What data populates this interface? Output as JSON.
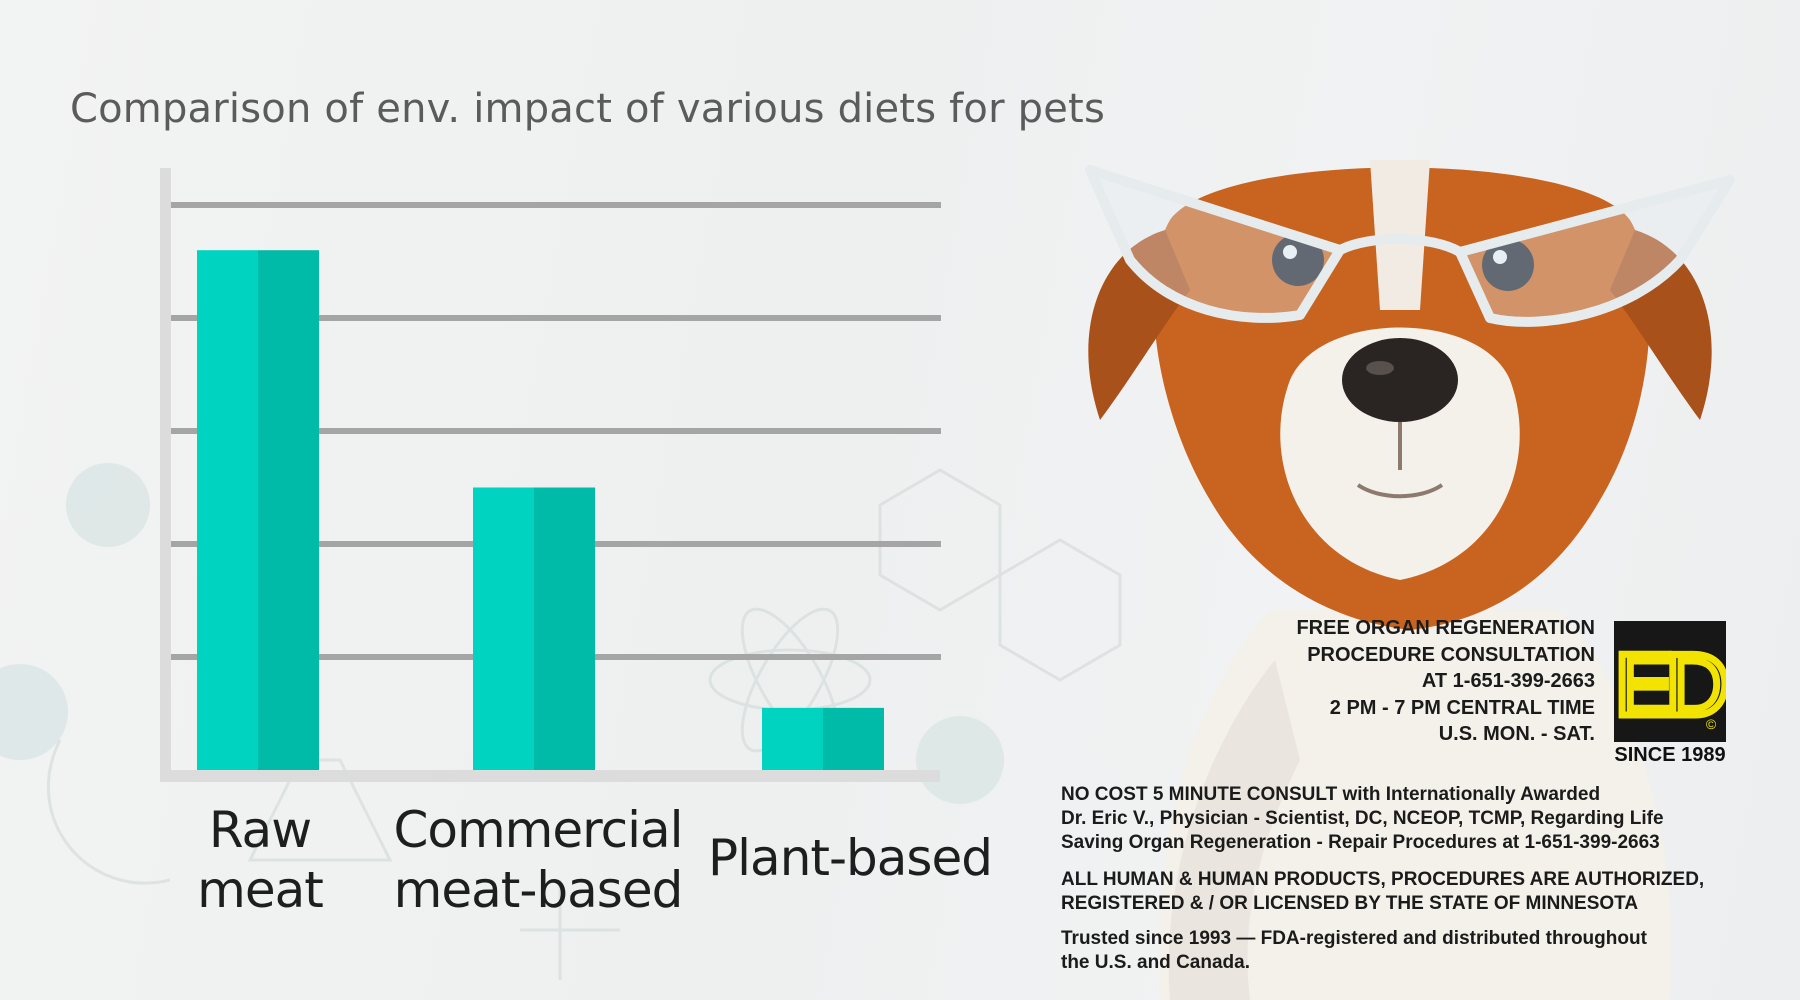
{
  "chart_data": {
    "type": "bar",
    "title": "Comparison of env. impact of various diets for pets",
    "categories": [
      [
        "Raw",
        "meat"
      ],
      [
        "Commercial",
        "meat-based"
      ],
      [
        "Plant-based"
      ]
    ],
    "values": [
      4.6,
      2.5,
      0.55
    ],
    "ylim": [
      0,
      5
    ],
    "gridlines": [
      1,
      2,
      3,
      4,
      5
    ],
    "xlabel": "",
    "ylabel": "",
    "grid": true,
    "bar_color": "#00d3bf",
    "bar_shade": "#00bba8",
    "grid_color": "#a5a5a5"
  },
  "promo": {
    "lines": [
      "FREE ORGAN REGENERATION",
      "PROCEDURE CONSULTATION",
      "AT 1-651-399-2663",
      "2 PM - 7 PM CENTRAL TIME",
      "U.S. MON. - SAT."
    ],
    "logo_letters": "ED",
    "logo_mark": "©",
    "since": "SINCE 1989"
  },
  "info": {
    "consult": [
      "NO COST 5 MINUTE CONSULT with Internationally Awarded",
      "Dr. Eric V., Physician - Scientist, DC, NCEOP, TCMP, Regarding Life",
      "Saving Organ Regeneration - Repair Procedures at 1-651-399-2663"
    ],
    "authorized": [
      "ALL HUMAN & HUMAN PRODUCTS, PROCEDURES ARE AUTHORIZED,",
      "REGISTERED & / OR LICENSED BY THE STATE OF MINNESOTA"
    ],
    "trusted": [
      "Trusted since 1993 — FDA-registered and distributed throughout",
      "the U.S. and Canada."
    ]
  },
  "colors": {
    "logo_bg": "#171717",
    "logo_yellow": "#f2e400",
    "dog_orange": "#c8641f",
    "dog_white": "#f4f0ea"
  }
}
